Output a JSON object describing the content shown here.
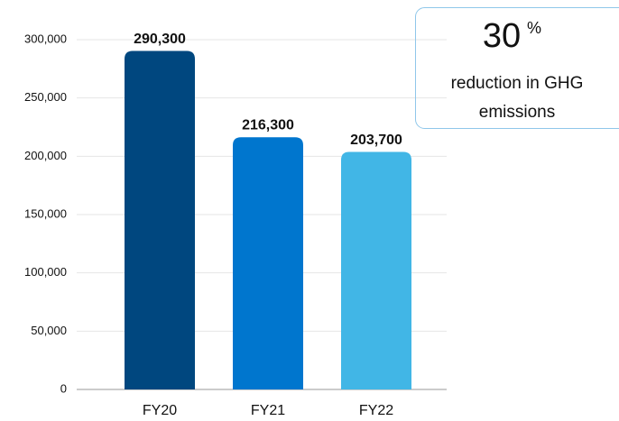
{
  "chart_data": {
    "type": "bar",
    "categories": [
      "FY20",
      "FY21",
      "FY22"
    ],
    "values": [
      290300,
      216300,
      203700
    ],
    "value_labels": [
      "290,300",
      "216,300",
      "203,700"
    ],
    "colors": [
      "#00477f",
      "#0076ce",
      "#41b6e6"
    ],
    "ylim": [
      0,
      300000
    ],
    "yticks": [
      0,
      {
        "value": 50000,
        "label": "50,000"
      },
      {
        "value": 100000,
        "label": "100,000"
      },
      {
        "value": 150000,
        "label": "150,000"
      },
      {
        "value": 200000,
        "label": "200,000"
      },
      {
        "value": 250000,
        "label": "250,000"
      },
      {
        "value": 300000,
        "label": "300,000"
      }
    ],
    "grid": true,
    "callout": {
      "value": 30,
      "unit": "%",
      "text": [
        "reduction in GHG",
        "emissions"
      ]
    }
  }
}
